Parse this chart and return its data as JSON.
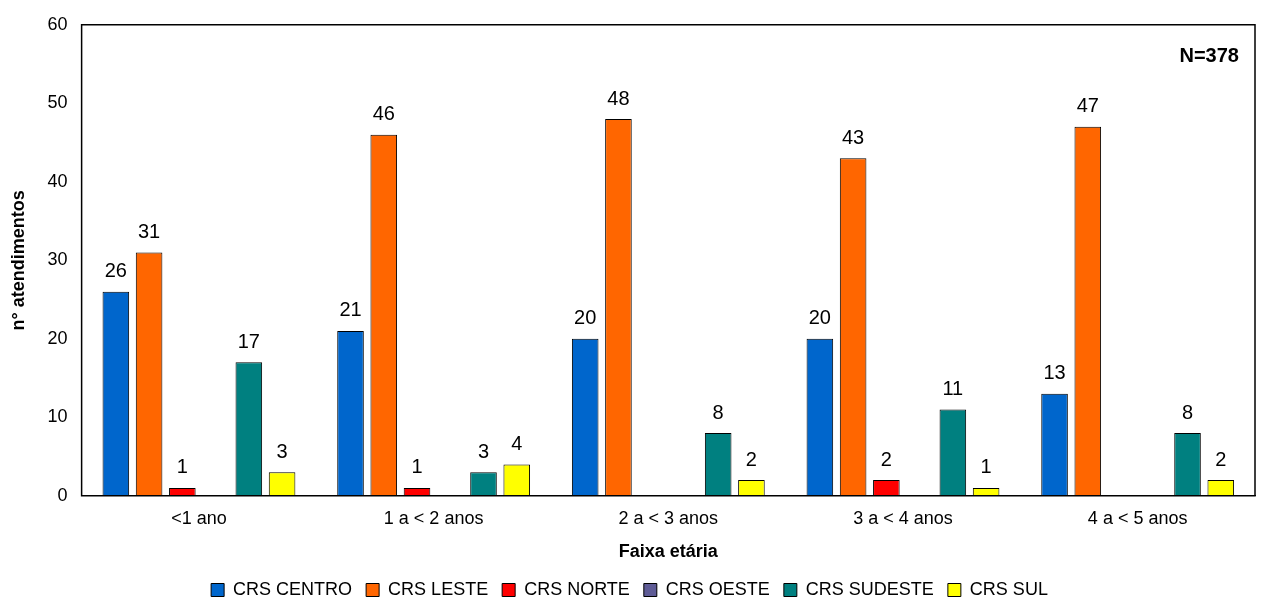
{
  "chart_data": {
    "type": "bar",
    "xlabel": "Faixa etária",
    "ylabel": "n° atendimentos",
    "categories": [
      "<1 ano",
      "1 a < 2 anos",
      "2 a < 3 anos",
      "3 a < 4 anos",
      "4 a < 5 anos"
    ],
    "series": [
      {
        "name": "CRS CENTRO",
        "color": "#0066cc",
        "values": [
          26,
          21,
          20,
          20,
          13
        ]
      },
      {
        "name": "CRS LESTE",
        "color": "#ff6600",
        "values": [
          31,
          46,
          48,
          43,
          47
        ]
      },
      {
        "name": "CRS NORTE",
        "color": "#ff0000",
        "values": [
          1,
          1,
          null,
          2,
          null
        ]
      },
      {
        "name": "CRS OESTE",
        "color": "#5f5c96",
        "values": [
          null,
          null,
          null,
          null,
          null
        ]
      },
      {
        "name": "CRS SUDESTE",
        "color": "#008080",
        "values": [
          17,
          3,
          8,
          11,
          8
        ]
      },
      {
        "name": "CRS SUL",
        "color": "#ffff00",
        "values": [
          3,
          4,
          2,
          1,
          2
        ]
      }
    ],
    "ylim": [
      0,
      60
    ],
    "yticks": [
      0,
      10,
      20,
      30,
      40,
      50,
      60
    ],
    "grid": false,
    "legend": "bottom",
    "data_labels": true,
    "annotations": [
      "N=378"
    ]
  }
}
